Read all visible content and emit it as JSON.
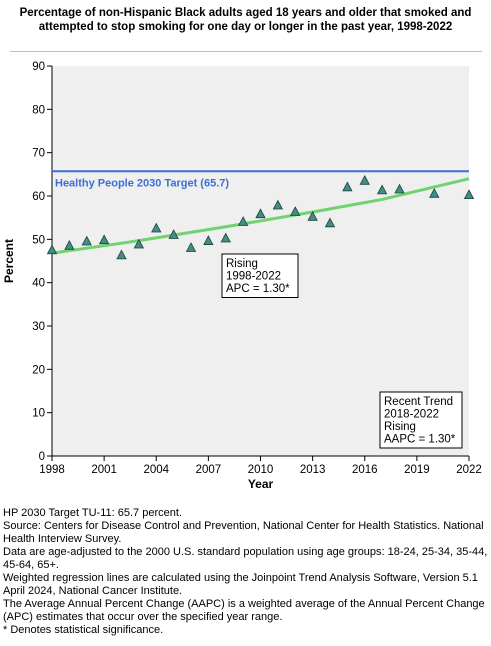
{
  "chart_data": {
    "type": "scatter",
    "title": "Percentage of non-Hispanic Black adults aged 18 years and older that smoked and attempted to stop smoking for one day or longer in the past year, 1998-2022",
    "xlabel": "Year",
    "ylabel": "Percent",
    "xlim": [
      1998,
      2022
    ],
    "ylim": [
      0,
      90
    ],
    "xticks": [
      1998,
      2001,
      2004,
      2007,
      2010,
      2013,
      2016,
      2019,
      2022
    ],
    "yticks": [
      0,
      10,
      20,
      30,
      40,
      50,
      60,
      70,
      80,
      90
    ],
    "grid": false,
    "series": [
      {
        "x": [
          1998,
          1999,
          2000,
          2001,
          2002,
          2003,
          2004,
          2005,
          2006,
          2007,
          2008,
          2009,
          2010,
          2011,
          2012,
          2013,
          2014,
          2015,
          2016,
          2017,
          2018,
          2020,
          2022
        ],
        "values": [
          47.5,
          48.5,
          49.5,
          49.8,
          46.3,
          48.8,
          52.5,
          51.0,
          48.0,
          49.6,
          50.2,
          54.0,
          55.8,
          57.8,
          56.3,
          55.2,
          53.7,
          62.0,
          63.5,
          61.3,
          61.5,
          60.5,
          60.2
        ],
        "color": "#3f8f86",
        "marker": "triangle"
      }
    ],
    "trend_line": {
      "x": [
        1998,
        2003,
        2008,
        2013,
        2017,
        2022
      ],
      "values": [
        46.8,
        49.7,
        52.9,
        56.3,
        59.2,
        64.0
      ],
      "color": "#6fd36f"
    },
    "target_line": {
      "value": 65.7,
      "label": "Healthy People 2030 Target (65.7)",
      "color": "#3b6fd6"
    },
    "annotations": [
      {
        "lines": [
          "Rising",
          "1998-2022",
          "APC =  1.30*"
        ]
      },
      {
        "lines": [
          "Recent Trend",
          "2018-2022",
          "Rising",
          "AAPC =  1.30*"
        ]
      }
    ]
  },
  "notes": [
    "HP 2030 Target TU-11: 65.7 percent.",
    "Source: Centers for Disease Control and Prevention, National Center for Health Statistics. National Health Interview Survey.",
    "Data are age-adjusted to the 2000 U.S. standard population using age groups: 18-24, 25-34, 35-44, 45-64, 65+.",
    "Weighted regression lines are calculated using the Joinpoint Trend Analysis Software, Version 5.1 April 2024, National Cancer Institute.",
    "The Average Annual Percent Change (AAPC) is a weighted average of the Annual Percent Change (APC) estimates that occur over the specified year range.",
    "* Denotes statistical significance."
  ],
  "colors": {
    "plot_background": "#efefef",
    "axis": "#000000"
  }
}
